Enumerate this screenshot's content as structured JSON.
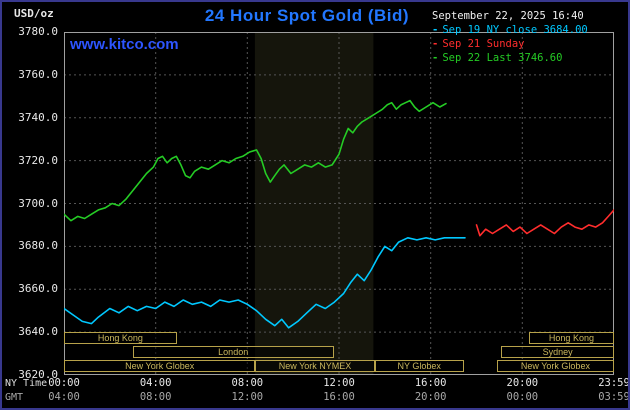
{
  "header": {
    "title": "24 Hour Spot Gold (Bid)",
    "date": "September 22, 2025 16:40",
    "watermark": "www.kitco.com",
    "unit_label": "USD/oz"
  },
  "legend": [
    {
      "label": "Sep 19 NY close 3684.00",
      "color": "#00c8ff"
    },
    {
      "label": "Sep 21 Sunday",
      "color": "#ff2d2d"
    },
    {
      "label": "Sep 22 Last 3746.60",
      "color": "#25cc25"
    }
  ],
  "axes": {
    "ny_time_label": "NY Time",
    "gmt_label": "GMT",
    "x_ticks_ny": [
      "00:00",
      "04:00",
      "08:00",
      "12:00",
      "16:00",
      "20:00",
      "23:59"
    ],
    "x_ticks_gmt": [
      "04:00",
      "08:00",
      "12:00",
      "16:00",
      "20:00",
      "00:00",
      "03:59"
    ],
    "y_ticks": [
      "3780.0",
      "3760.0",
      "3740.0",
      "3720.0",
      "3700.0",
      "3680.0",
      "3660.0",
      "3640.0",
      "3620.0"
    ]
  },
  "sessions": [
    {
      "row": 0,
      "start": 0.0,
      "end": 0.205,
      "label": "Hong Kong"
    },
    {
      "row": 0,
      "start": 0.845,
      "end": 1.0,
      "label": "Hong Kong"
    },
    {
      "row": 1,
      "start": 0.125,
      "end": 0.49,
      "label": "London"
    },
    {
      "row": 1,
      "start": 0.795,
      "end": 1.0,
      "label": "Sydney"
    },
    {
      "row": 2,
      "start": 0.0,
      "end": 0.348,
      "label": "New York Globex"
    },
    {
      "row": 2,
      "start": 0.348,
      "end": 0.565,
      "label": "New York NYMEX"
    },
    {
      "row": 2,
      "start": 0.565,
      "end": 0.727,
      "label": "NY Globex"
    },
    {
      "row": 2,
      "start": 0.787,
      "end": 1.0,
      "label": "New York Globex"
    }
  ],
  "chart_data": {
    "type": "line",
    "title": "24 Hour Spot Gold (Bid)",
    "xlabel": "NY Time",
    "ylabel": "USD/oz",
    "ylim": [
      3620,
      3780
    ],
    "xlim_hours": [
      0,
      24
    ],
    "grid": true,
    "legend_position": "top-right",
    "highlight_band_hours": [
      8.33,
      13.5
    ],
    "grid_color": "#555555",
    "border_color": "#a0a0a0",
    "series": [
      {
        "name": "Sep 19 NY close 3684.00",
        "color": "#00c8ff",
        "points": [
          [
            0,
            3651
          ],
          [
            0.4,
            3648
          ],
          [
            0.8,
            3645
          ],
          [
            1.2,
            3644
          ],
          [
            1.5,
            3647
          ],
          [
            2,
            3651
          ],
          [
            2.4,
            3649
          ],
          [
            2.8,
            3652
          ],
          [
            3.2,
            3650
          ],
          [
            3.6,
            3652
          ],
          [
            4,
            3651
          ],
          [
            4.4,
            3654
          ],
          [
            4.8,
            3652
          ],
          [
            5.2,
            3655
          ],
          [
            5.6,
            3653
          ],
          [
            6,
            3654
          ],
          [
            6.4,
            3652
          ],
          [
            6.8,
            3655
          ],
          [
            7.2,
            3654
          ],
          [
            7.6,
            3655
          ],
          [
            8,
            3653
          ],
          [
            8.4,
            3650
          ],
          [
            8.8,
            3646
          ],
          [
            9.2,
            3643
          ],
          [
            9.5,
            3646
          ],
          [
            9.8,
            3642
          ],
          [
            10.2,
            3645
          ],
          [
            10.6,
            3649
          ],
          [
            11,
            3653
          ],
          [
            11.4,
            3651
          ],
          [
            11.8,
            3654
          ],
          [
            12.2,
            3658
          ],
          [
            12.5,
            3663
          ],
          [
            12.8,
            3667
          ],
          [
            13.1,
            3664
          ],
          [
            13.4,
            3669
          ],
          [
            13.7,
            3675
          ],
          [
            14,
            3680
          ],
          [
            14.3,
            3678
          ],
          [
            14.6,
            3682
          ],
          [
            15,
            3684
          ],
          [
            15.4,
            3683
          ],
          [
            15.8,
            3684
          ],
          [
            16.2,
            3683
          ],
          [
            16.6,
            3684
          ],
          [
            17,
            3684
          ],
          [
            17.5,
            3684
          ]
        ]
      },
      {
        "name": "Sep 21 Sunday",
        "color": "#ff2d2d",
        "points": [
          [
            18,
            3690
          ],
          [
            18.15,
            3685
          ],
          [
            18.4,
            3688
          ],
          [
            18.7,
            3686
          ],
          [
            19,
            3688
          ],
          [
            19.3,
            3690
          ],
          [
            19.6,
            3687
          ],
          [
            19.9,
            3689
          ],
          [
            20.2,
            3686
          ],
          [
            20.5,
            3688
          ],
          [
            20.8,
            3690
          ],
          [
            21.1,
            3688
          ],
          [
            21.4,
            3686
          ],
          [
            21.7,
            3689
          ],
          [
            22,
            3691
          ],
          [
            22.3,
            3689
          ],
          [
            22.6,
            3688
          ],
          [
            22.9,
            3690
          ],
          [
            23.2,
            3689
          ],
          [
            23.5,
            3691
          ],
          [
            23.75,
            3694
          ],
          [
            24,
            3697
          ]
        ]
      },
      {
        "name": "Sep 22 Last 3746.60",
        "color": "#25cc25",
        "points": [
          [
            0,
            3695
          ],
          [
            0.3,
            3692
          ],
          [
            0.6,
            3694
          ],
          [
            0.9,
            3693
          ],
          [
            1.2,
            3695
          ],
          [
            1.5,
            3697
          ],
          [
            1.8,
            3698
          ],
          [
            2.1,
            3700
          ],
          [
            2.4,
            3699
          ],
          [
            2.7,
            3702
          ],
          [
            3,
            3706
          ],
          [
            3.3,
            3710
          ],
          [
            3.6,
            3714
          ],
          [
            3.9,
            3717
          ],
          [
            4.1,
            3721
          ],
          [
            4.3,
            3722
          ],
          [
            4.5,
            3719
          ],
          [
            4.7,
            3721
          ],
          [
            4.9,
            3722
          ],
          [
            5.1,
            3718
          ],
          [
            5.3,
            3713
          ],
          [
            5.5,
            3712
          ],
          [
            5.7,
            3715
          ],
          [
            6,
            3717
          ],
          [
            6.3,
            3716
          ],
          [
            6.6,
            3718
          ],
          [
            6.9,
            3720
          ],
          [
            7.2,
            3719
          ],
          [
            7.5,
            3721
          ],
          [
            7.8,
            3722
          ],
          [
            8.1,
            3724
          ],
          [
            8.4,
            3725
          ],
          [
            8.6,
            3721
          ],
          [
            8.8,
            3714
          ],
          [
            9,
            3710
          ],
          [
            9.2,
            3713
          ],
          [
            9.4,
            3716
          ],
          [
            9.6,
            3718
          ],
          [
            9.9,
            3714
          ],
          [
            10.2,
            3716
          ],
          [
            10.5,
            3718
          ],
          [
            10.8,
            3717
          ],
          [
            11.1,
            3719
          ],
          [
            11.4,
            3717
          ],
          [
            11.7,
            3718
          ],
          [
            12,
            3723
          ],
          [
            12.2,
            3730
          ],
          [
            12.4,
            3735
          ],
          [
            12.6,
            3733
          ],
          [
            12.8,
            3736
          ],
          [
            13,
            3738
          ],
          [
            13.3,
            3740
          ],
          [
            13.6,
            3742
          ],
          [
            13.9,
            3744
          ],
          [
            14.1,
            3746
          ],
          [
            14.3,
            3747
          ],
          [
            14.5,
            3744
          ],
          [
            14.7,
            3746
          ],
          [
            14.9,
            3747
          ],
          [
            15.1,
            3748
          ],
          [
            15.3,
            3745
          ],
          [
            15.5,
            3743
          ],
          [
            15.8,
            3745
          ],
          [
            16.1,
            3747
          ],
          [
            16.4,
            3745
          ],
          [
            16.67,
            3746.6
          ]
        ]
      }
    ]
  }
}
